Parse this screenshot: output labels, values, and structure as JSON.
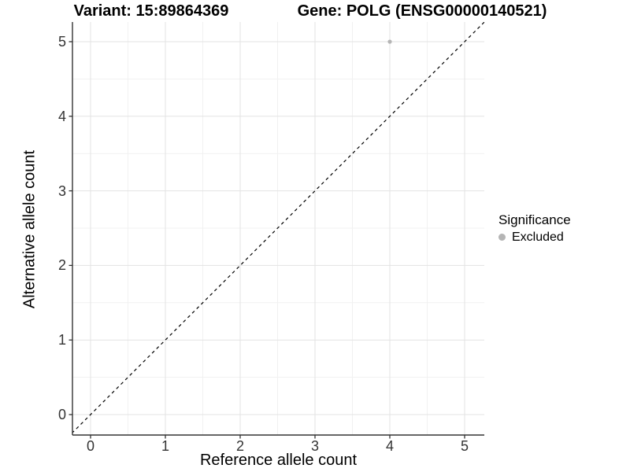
{
  "header": {
    "title_variant": "Variant: 15:89864369",
    "title_gene": "Gene: POLG (ENSG00000140521)"
  },
  "legend": {
    "title": "Significance",
    "items": [
      {
        "label": "Excluded",
        "color": "#b5b5b5",
        "marker": "dot"
      }
    ]
  },
  "chart_data": {
    "type": "scatter",
    "title": "Variant: 15:89864369   Gene: POLG (ENSG00000140521)",
    "xlabel": "Reference allele count",
    "ylabel": "Alternative allele count",
    "x_ticks": [
      0,
      1,
      2,
      3,
      4,
      5
    ],
    "y_ticks": [
      0,
      1,
      2,
      3,
      4,
      5
    ],
    "xlim": [
      -0.25,
      5.25
    ],
    "ylim": [
      -0.27,
      5.27
    ],
    "grid": {
      "major": true,
      "minor": true,
      "minor_step": 0.5
    },
    "legend_position": "right",
    "legend_title": "Significance",
    "series": [
      {
        "name": "Excluded",
        "color": "#b5b5b5",
        "marker": "dot",
        "points": [
          {
            "x": 4,
            "y": 5
          }
        ]
      }
    ],
    "reference_line": {
      "kind": "identity y=x",
      "style": "dashed",
      "color": "#000000"
    }
  },
  "colors": {
    "background": "#ffffff",
    "grid_major": "#e3e3e3",
    "grid_minor": "#f1f1f1",
    "axis_line": "#333333",
    "tick_text": "#333333",
    "title_text": "#000000",
    "point": "#b5b5b5"
  }
}
